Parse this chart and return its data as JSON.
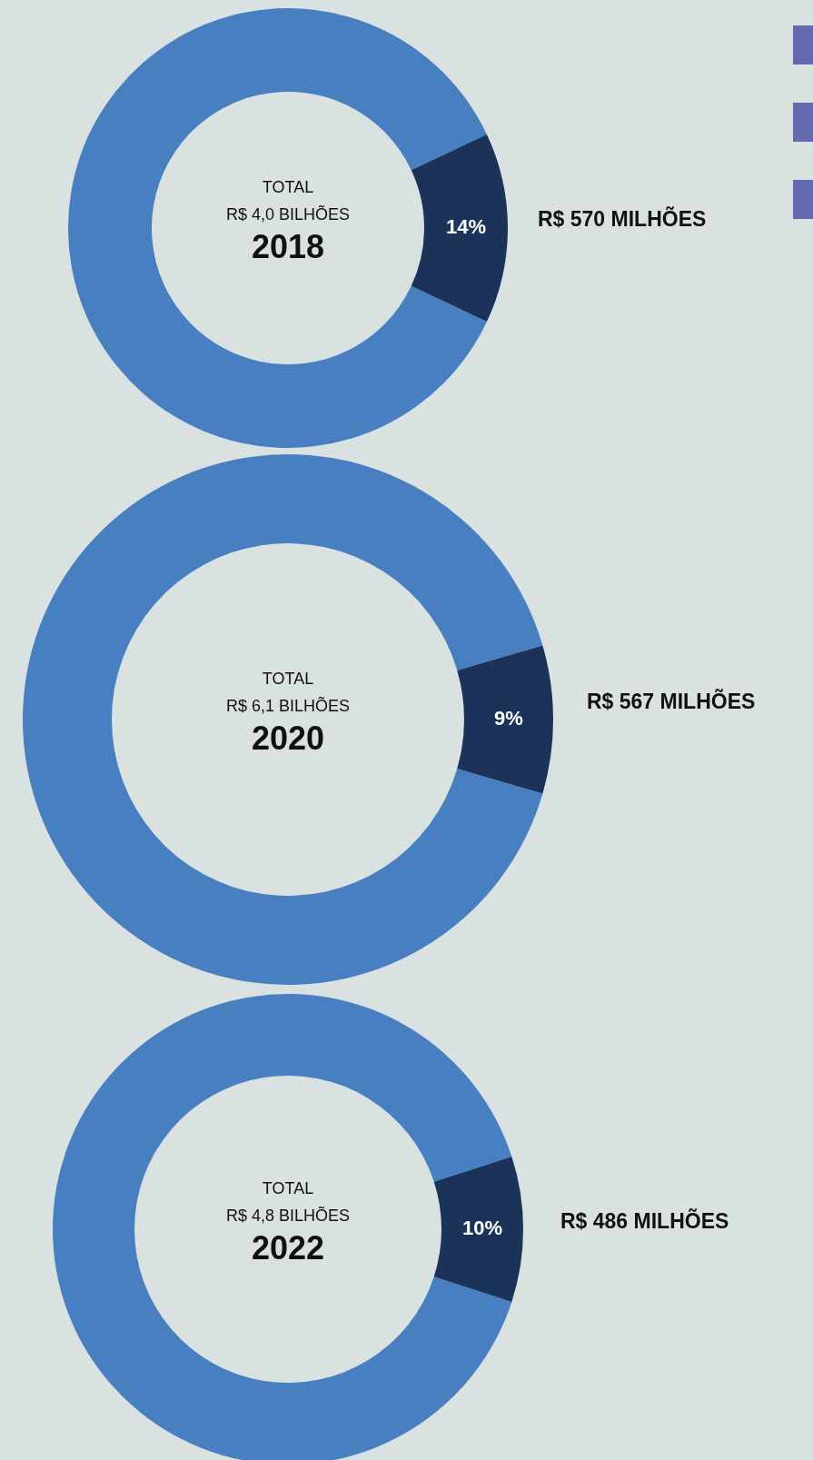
{
  "chart_data": [
    {
      "type": "donut",
      "title": "2018",
      "categories": [
        null,
        null
      ],
      "values": [
        86,
        14
      ],
      "colors": [
        "#477fc0",
        "#1b3358"
      ],
      "value_labels": [
        null,
        "14%"
      ],
      "annotations": [
        "TOTAL",
        "R$ 4,0 BILHÕES",
        "R$ 570 MILHÕES"
      ]
    },
    {
      "type": "donut",
      "title": "2020",
      "categories": [
        null,
        null
      ],
      "values": [
        91,
        9
      ],
      "colors": [
        "#477fc0",
        "#1b3358"
      ],
      "value_labels": [
        null,
        "9%"
      ],
      "annotations": [
        "TOTAL",
        "R$ 6,1 BILHÕES",
        "R$ 567 MILHÕES"
      ]
    },
    {
      "type": "donut",
      "title": "2022",
      "categories": [
        null,
        null
      ],
      "values": [
        90,
        10
      ],
      "colors": [
        "#477fc0",
        "#1b3358"
      ],
      "value_labels": [
        null,
        "10%"
      ],
      "annotations": [
        "TOTAL",
        "R$ 4,8 BILHÕES",
        "R$ 486 MILHÕES"
      ]
    }
  ]
}
